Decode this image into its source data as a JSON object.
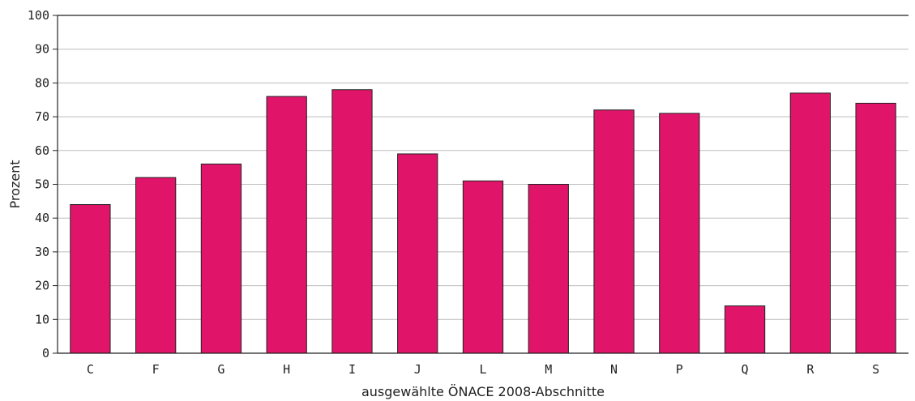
{
  "chart_data": {
    "type": "bar",
    "title": "",
    "xlabel": "ausgewählte ÖNACE 2008-Abschnitte",
    "ylabel": "Prozent",
    "ylim": [
      0,
      100
    ],
    "yticks": [
      0,
      10,
      20,
      30,
      40,
      50,
      60,
      70,
      80,
      90,
      100
    ],
    "grid": true,
    "legend": "none",
    "bar_color": "#e0156a",
    "bar_edge_color": "#222222",
    "categories": [
      "C",
      "F",
      "G",
      "H",
      "I",
      "J",
      "L",
      "M",
      "N",
      "P",
      "Q",
      "R",
      "S"
    ],
    "values": [
      44,
      52,
      56,
      76,
      78,
      59,
      51,
      50,
      72,
      71,
      14,
      77,
      74
    ]
  }
}
